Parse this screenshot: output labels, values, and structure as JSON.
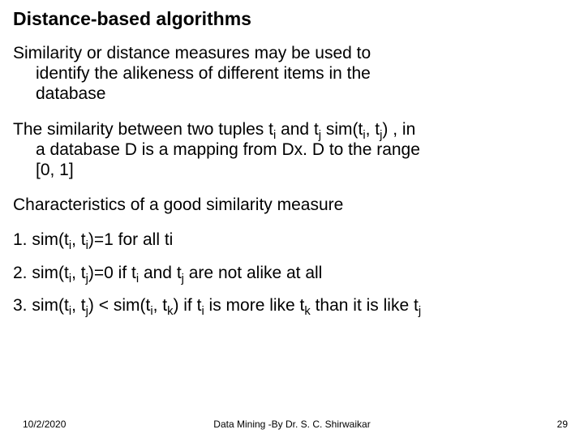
{
  "title": "Distance-based algorithms",
  "para1_line1": "Similarity or distance measures may be used to",
  "para1_line2": "identify the alikeness of different items in the",
  "para1_line3": "database",
  "para2_prefix": "The similarity between two tuples t",
  "para2_sub_i1": "i",
  "para2_mid1": " and t",
  "para2_sub_j1": "j",
  "para2_mid2": " sim(t",
  "para2_sub_i2": "i",
  "para2_mid3": ", t",
  "para2_sub_j2": "j",
  "para2_mid4": ") , in",
  "para2_line2": "a database D is a mapping from Dx. D to the range",
  "para2_line3": "[0, 1]",
  "para3": "Characteristics of a good similarity measure",
  "item1_prefix": "1. sim(t",
  "item1_sub_i1": "i",
  "item1_mid1": ", t",
  "item1_sub_i2": "i",
  "item1_suffix": ")=1  for all ti",
  "item2_prefix": "2. sim(t",
  "item2_sub_i": "i",
  "item2_mid1": ", t",
  "item2_sub_j": "j",
  "item2_mid2": ")=0 if t",
  "item2_sub_i2": "i",
  "item2_mid3": " and t",
  "item2_sub_j2": "j",
  "item2_suffix": " are not alike at all",
  "item3_prefix": "3. sim(t",
  "item3_sub_i": "i",
  "item3_mid1": ", t",
  "item3_sub_j": "j",
  "item3_mid2": ") < sim(t",
  "item3_sub_i2": "i",
  "item3_mid3": ", t",
  "item3_sub_k": "k",
  "item3_mid4": ") if t",
  "item3_sub_i3": "i",
  "item3_mid5": " is more like t",
  "item3_sub_k2": "k",
  "item3_mid6": " than it is like t",
  "item3_sub_j2": "j",
  "footer": {
    "date": "10/2/2020",
    "center": "Data Mining -By Dr. S. C. Shirwaikar",
    "page": "29"
  }
}
